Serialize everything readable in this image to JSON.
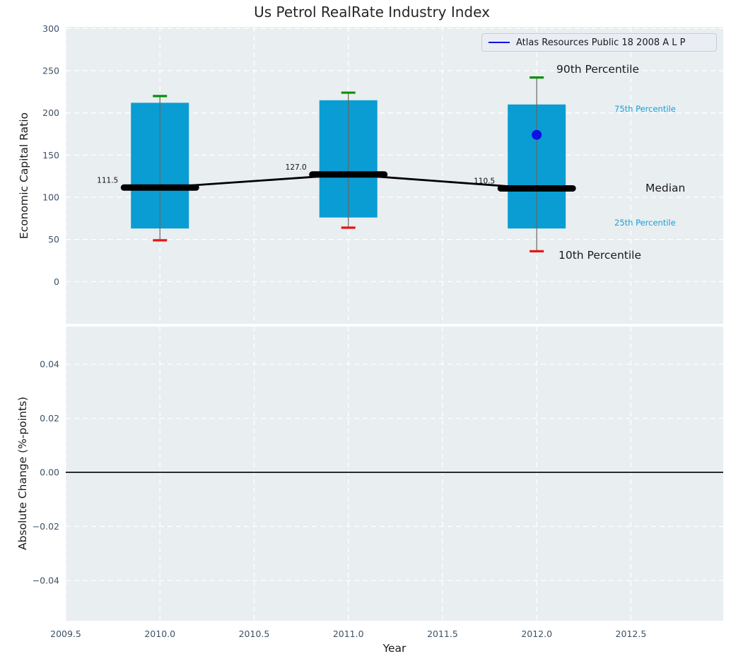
{
  "figure": {
    "title": "Us Petrol RealRate Industry Index",
    "background": "#ffffff",
    "axes_background": "#e9eef0",
    "grid_color": "#ffffff"
  },
  "legend": {
    "label": "Atlas Resources Public 18 2008 A L P",
    "line_color": "#0f0fe6",
    "position": "upper right"
  },
  "chart_data": [
    {
      "type": "box",
      "title": "Us Petrol RealRate Industry Index",
      "ylabel": "Economic Capital Ratio",
      "xlabel": "",
      "ylim": [
        -50,
        302
      ],
      "xlim": [
        2009.5,
        2012.99
      ],
      "yticks": [
        0,
        50,
        100,
        150,
        200,
        250,
        300
      ],
      "ytick_labels": [
        "0",
        "50",
        "100",
        "150",
        "200",
        "250",
        "300"
      ],
      "xticks": [
        2009.5,
        2010,
        2010.5,
        2011,
        2011.5,
        2012,
        2012.5
      ],
      "grid": {
        "color": "#ffffff",
        "style": "dashed",
        "on": true
      },
      "categories": [
        2010,
        2011,
        2012
      ],
      "percentiles": {
        "p90": [
          220,
          224,
          242
        ],
        "p75": [
          212,
          215,
          210
        ],
        "median": [
          111.5,
          127.0,
          110.5
        ],
        "p25": [
          63,
          76,
          63
        ],
        "p10": [
          49,
          64,
          36
        ]
      },
      "median_labels": [
        "111.5",
        "127.0",
        "110.5"
      ],
      "company_point": {
        "name": "Atlas Resources Public 18 2008 A L P",
        "x": 2012,
        "y": 174
      },
      "annotations": [
        {
          "text": "90th Percentile",
          "size": "large",
          "color": "#1a1a1a"
        },
        {
          "text": "75th Percentile",
          "size": "small",
          "color": "#16a0da"
        },
        {
          "text": "Median",
          "size": "large",
          "color": "#1a1a1a"
        },
        {
          "text": "25th Percentile",
          "size": "small",
          "color": "#16a0da"
        },
        {
          "text": "10th Percentile",
          "size": "large",
          "color": "#1a1a1a"
        }
      ],
      "colors": {
        "box": "#099dd3",
        "p90_cap": "#0a910a",
        "p10_cap": "#e91414",
        "median": "#000000",
        "whisker": "#666666",
        "company": "#0f0fe6"
      }
    },
    {
      "type": "line",
      "ylabel": "Absolute Change (%-points)",
      "xlabel": "Year",
      "ylim": [
        -0.0549,
        0.0539
      ],
      "xlim": [
        2009.5,
        2012.99
      ],
      "yticks": [
        0.04,
        0.02,
        0.0,
        -0.02,
        -0.04
      ],
      "ytick_labels": [
        "0.04",
        "0.02",
        "0.00",
        "−0.02",
        "−0.04"
      ],
      "xticks": [
        2009.5,
        2010,
        2010.5,
        2011,
        2011.5,
        2012,
        2012.5
      ],
      "xtick_labels": [
        "2009.5",
        "2010.0",
        "2010.5",
        "2011.0",
        "2011.5",
        "2012.0",
        "2012.5"
      ],
      "zero_line": 0.0,
      "series": []
    }
  ]
}
